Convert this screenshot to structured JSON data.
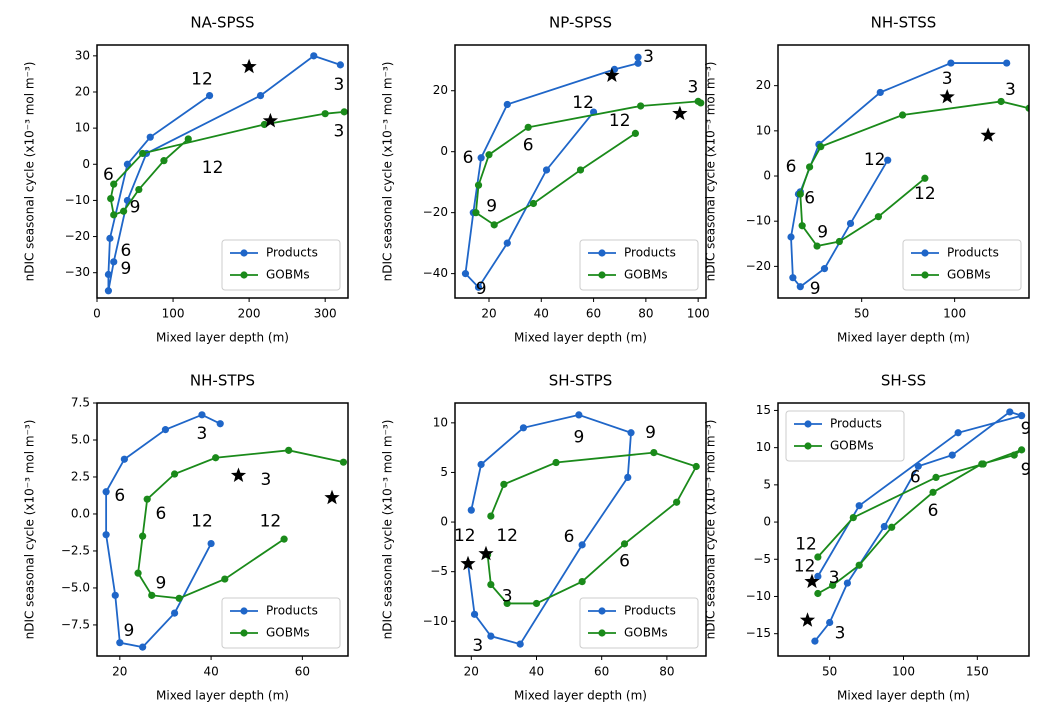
{
  "chart_data": [
    {
      "type": "line",
      "title": "NA-SPSS",
      "xlabel": "Mixed layer depth (m)",
      "ylabel": "nDIC seasonal cycle (x10⁻³ mol m⁻³)",
      "xlim": [
        0,
        330
      ],
      "xticks": [
        0,
        100,
        200,
        300
      ],
      "ylim": [
        -37,
        33
      ],
      "yticks": [
        {
          "value": -30,
          "label": "−30"
        },
        {
          "value": -20,
          "label": "−20"
        },
        {
          "value": -10,
          "label": "−10"
        },
        0,
        10,
        20,
        30
      ],
      "legend": "lower right",
      "series": [
        {
          "name": "Products",
          "color": "#1f66c8",
          "x": [
            148,
            70,
            40,
            17,
            15,
            15,
            22,
            40,
            65,
            215,
            285,
            320
          ],
          "y": [
            19,
            7.5,
            0,
            -20.5,
            -30.5,
            -35,
            -27,
            -10,
            3,
            19,
            30,
            27.5
          ]
        },
        {
          "name": "GOBMs",
          "color": "#1a8a1a",
          "x": [
            120,
            88,
            55,
            35,
            22,
            18,
            22,
            60,
            220,
            300,
            325
          ],
          "y": [
            7,
            1,
            -7,
            -13,
            -14,
            -9.5,
            -5.5,
            3,
            11,
            14,
            14.5
          ]
        }
      ],
      "stars": {
        "x": [
          200,
          228
        ],
        "y": [
          27,
          12
        ]
      },
      "annotations": [
        {
          "text": "12",
          "x": 138,
          "y": 23.5,
          "color": "#2b2bb5"
        },
        {
          "text": "3",
          "x": 318,
          "y": 22,
          "color": "#2b2bb5"
        },
        {
          "text": "6",
          "x": 38,
          "y": -24,
          "color": "#2b2bb5"
        },
        {
          "text": "9",
          "x": 38,
          "y": -29,
          "color": "#2b2bb5"
        },
        {
          "text": "6",
          "x": 15,
          "y": -3,
          "color": "#4cae4c"
        },
        {
          "text": "9",
          "x": 50,
          "y": -12,
          "color": "#4cae4c"
        },
        {
          "text": "12",
          "x": 152,
          "y": -1,
          "color": "#4cae4c"
        },
        {
          "text": "3",
          "x": 318,
          "y": 9,
          "color": "#4cae4c"
        }
      ]
    },
    {
      "type": "line",
      "title": "NP-SPSS",
      "xlabel": "Mixed layer depth (m)",
      "ylabel": "nDIC seasonal cycle (x10⁻³ mol m⁻³)",
      "xlim": [
        7,
        103
      ],
      "xticks": [
        20,
        40,
        60,
        80,
        100
      ],
      "ylim": [
        -48,
        35
      ],
      "yticks": [
        {
          "value": -40,
          "label": "−40"
        },
        {
          "value": -20,
          "label": "−20"
        },
        0,
        20
      ],
      "legend": "lower right",
      "series": [
        {
          "name": "Products",
          "color": "#1f66c8",
          "x": [
            77,
            77,
            68,
            27,
            17,
            14,
            11,
            16,
            27,
            42,
            60
          ],
          "y": [
            31,
            29,
            27,
            15.5,
            -2,
            -20,
            -40,
            -44.5,
            -30,
            -6,
            13
          ]
        },
        {
          "name": "GOBMs",
          "color": "#1a8a1a",
          "x": [
            101,
            100,
            78,
            35,
            20,
            16,
            15,
            22,
            37,
            55,
            76
          ],
          "y": [
            16,
            16.5,
            15,
            8,
            -1,
            -11,
            -20,
            -24,
            -17,
            -6,
            6
          ]
        }
      ],
      "stars": {
        "x": [
          67,
          93
        ],
        "y": [
          25,
          12.5
        ]
      },
      "annotations": [
        {
          "text": "3",
          "x": 81,
          "y": 31,
          "color": "#2b2bb5"
        },
        {
          "text": "6",
          "x": 12,
          "y": -2,
          "color": "#2b2bb5"
        },
        {
          "text": "9",
          "x": 17,
          "y": -45,
          "color": "#2b2bb5"
        },
        {
          "text": "12",
          "x": 56,
          "y": 16,
          "color": "#2b2bb5"
        },
        {
          "text": "3",
          "x": 98,
          "y": 21,
          "color": "#4cae4c"
        },
        {
          "text": "6",
          "x": 35,
          "y": 2,
          "color": "#4cae4c"
        },
        {
          "text": "9",
          "x": 21,
          "y": -18,
          "color": "#4cae4c"
        },
        {
          "text": "12",
          "x": 70,
          "y": 10,
          "color": "#4cae4c"
        }
      ]
    },
    {
      "type": "line",
      "title": "NH-STSS",
      "xlabel": "Mixed layer depth (m)",
      "ylabel": "nDIC seasonal cycle (x10⁻³ mol m⁻³)",
      "xlim": [
        5,
        140
      ],
      "xticks": [
        50,
        100
      ],
      "ylim": [
        -27,
        29
      ],
      "yticks": [
        {
          "value": -20,
          "label": "−20"
        },
        {
          "value": -10,
          "label": "−10"
        },
        0,
        10,
        20
      ],
      "legend": "lower right",
      "series": [
        {
          "name": "Products",
          "color": "#1f66c8",
          "x": [
            128,
            98,
            60,
            27,
            17,
            16,
            12,
            13,
            17,
            30,
            44,
            64
          ],
          "y": [
            25,
            25,
            18.5,
            7,
            -3.5,
            -4,
            -13.5,
            -22.5,
            -24.5,
            -20.5,
            -10.5,
            3.5
          ]
        },
        {
          "name": "GOBMs",
          "color": "#1a8a1a",
          "x": [
            140,
            125,
            72,
            28,
            22,
            17,
            18,
            26,
            38,
            59,
            84
          ],
          "y": [
            15,
            16.5,
            13.5,
            6.5,
            2,
            -4,
            -11,
            -15.5,
            -14.5,
            -9,
            -0.5
          ]
        }
      ],
      "stars": {
        "x": [
          96,
          118
        ],
        "y": [
          17.5,
          9
        ]
      },
      "annotations": [
        {
          "text": "3",
          "x": 96,
          "y": 21.5,
          "color": "#2b2bb5"
        },
        {
          "text": "6",
          "x": 22,
          "y": -5,
          "color": "#2b2bb5"
        },
        {
          "text": "9",
          "x": 25,
          "y": -25,
          "color": "#2b2bb5"
        },
        {
          "text": "12",
          "x": 57,
          "y": 3.5,
          "color": "#2b2bb5"
        },
        {
          "text": "3",
          "x": 130,
          "y": 19,
          "color": "#4cae4c"
        },
        {
          "text": "6",
          "x": 12,
          "y": 2,
          "color": "#4cae4c"
        },
        {
          "text": "9",
          "x": 29,
          "y": -12.5,
          "color": "#4cae4c"
        },
        {
          "text": "12",
          "x": 84,
          "y": -4,
          "color": "#4cae4c"
        }
      ]
    },
    {
      "type": "line",
      "title": "NH-STPS",
      "xlabel": "Mixed layer depth (m)",
      "ylabel": "nDIC seasonal cycle (x10⁻³ mol m⁻³)",
      "xlim": [
        15,
        70
      ],
      "xticks": [
        20,
        40,
        60
      ],
      "ylim": [
        -9.6,
        7.5
      ],
      "yticks": [
        {
          "value": -7.5,
          "label": "−7.5"
        },
        {
          "value": -5,
          "label": "−5.0"
        },
        {
          "value": -2.5,
          "label": "−2.5"
        },
        {
          "value": 0,
          "label": "0.0"
        },
        2.5,
        {
          "value": 5,
          "label": "5.0"
        },
        7.5
      ],
      "legend": "lower right",
      "series": [
        {
          "name": "Products",
          "color": "#1f66c8",
          "x": [
            40,
            32,
            25,
            20,
            19,
            17,
            17,
            21,
            30,
            38,
            42
          ],
          "y": [
            -2,
            -6.7,
            -9,
            -8.7,
            -5.5,
            -1.4,
            1.5,
            3.7,
            5.7,
            6.7,
            6.1
          ]
        },
        {
          "name": "GOBMs",
          "color": "#1a8a1a",
          "x": [
            56,
            43,
            33,
            27,
            24,
            25,
            26,
            32,
            41,
            57,
            69
          ],
          "y": [
            -1.7,
            -4.4,
            -5.7,
            -5.5,
            -4,
            -1.5,
            1,
            2.7,
            3.8,
            4.3,
            3.5
          ]
        }
      ],
      "stars": {
        "x": [
          46,
          66.5
        ],
        "y": [
          2.6,
          1.1
        ]
      },
      "annotations": [
        {
          "text": "3",
          "x": 38,
          "y": 5.4,
          "color": "#2b2bb5"
        },
        {
          "text": "6",
          "x": 20,
          "y": 1.2,
          "color": "#2b2bb5"
        },
        {
          "text": "9",
          "x": 22,
          "y": -7.9,
          "color": "#2b2bb5"
        },
        {
          "text": "12",
          "x": 38,
          "y": -0.5,
          "color": "#2b2bb5"
        },
        {
          "text": "3",
          "x": 52,
          "y": 2.3,
          "color": "#4cae4c"
        },
        {
          "text": "6",
          "x": 29,
          "y": 0,
          "color": "#4cae4c"
        },
        {
          "text": "9",
          "x": 29,
          "y": -4.7,
          "color": "#4cae4c"
        },
        {
          "text": "12",
          "x": 53,
          "y": -0.5,
          "color": "#4cae4c"
        }
      ]
    },
    {
      "type": "line",
      "title": "SH-STPS",
      "xlabel": "Mixed layer depth (m)",
      "ylabel": "nDIC seasonal cycle (x10⁻³ mol m⁻³)",
      "xlim": [
        15,
        92
      ],
      "xticks": [
        20,
        40,
        60,
        80
      ],
      "ylim": [
        -13.5,
        12
      ],
      "yticks": [
        {
          "value": -10,
          "label": "−10"
        },
        {
          "value": -5,
          "label": "−5"
        },
        0,
        5,
        10
      ],
      "legend": "lower right",
      "series": [
        {
          "name": "Products",
          "color": "#1f66c8",
          "x": [
            20,
            23,
            36,
            53,
            69,
            68,
            54,
            35,
            26,
            21,
            19
          ],
          "y": [
            1.2,
            5.8,
            9.5,
            10.8,
            9,
            4.5,
            -2.3,
            -12.3,
            -11.5,
            -9.3,
            -4.2
          ]
        },
        {
          "name": "GOBMs",
          "color": "#1a8a1a",
          "x": [
            26,
            30,
            46,
            76,
            89,
            83,
            67,
            54,
            40,
            31,
            26,
            25
          ],
          "y": [
            0.6,
            3.8,
            6,
            7,
            5.6,
            2,
            -2.2,
            -6,
            -8.2,
            -8.2,
            -6.3,
            -3.3
          ]
        }
      ],
      "stars": {
        "x": [
          19,
          24.5
        ],
        "y": [
          -4.2,
          -3.2
        ]
      },
      "annotations": [
        {
          "text": "12",
          "x": 18,
          "y": -1.4,
          "color": "#2b2bb5"
        },
        {
          "text": "3",
          "x": 22,
          "y": -12.5,
          "color": "#2b2bb5"
        },
        {
          "text": "6",
          "x": 50,
          "y": -1.5,
          "color": "#2b2bb5"
        },
        {
          "text": "9",
          "x": 53,
          "y": 8.5,
          "color": "#2b2bb5"
        },
        {
          "text": "12",
          "x": 31,
          "y": -1.4,
          "color": "#4cae4c"
        },
        {
          "text": "3",
          "x": 31,
          "y": -7.5,
          "color": "#4cae4c"
        },
        {
          "text": "6",
          "x": 67,
          "y": -4,
          "color": "#4cae4c"
        },
        {
          "text": "9",
          "x": 75,
          "y": 9,
          "color": "#4cae4c"
        }
      ]
    },
    {
      "type": "line",
      "title": "SH-SS",
      "xlabel": "Mixed layer depth (m)",
      "ylabel": "nDIC seasonal cycle (x10⁻³ mol m⁻³)",
      "xlim": [
        15,
        185
      ],
      "xticks": [
        50,
        100,
        150
      ],
      "ylim": [
        -18,
        16
      ],
      "yticks": [
        {
          "value": -15,
          "label": "−15"
        },
        {
          "value": -10,
          "label": "−10"
        },
        {
          "value": -5,
          "label": "−5"
        },
        0,
        5,
        10,
        15
      ],
      "legend": "upper left",
      "series": [
        {
          "name": "Products",
          "color": "#1f66c8",
          "x": [
            40,
            50,
            62,
            87,
            110,
            133,
            172,
            180,
            137,
            70,
            42
          ],
          "y": [
            -16,
            -13.5,
            -8.2,
            -0.6,
            7.5,
            9,
            14.8,
            14.3,
            12,
            2.2,
            -7.3
          ]
        },
        {
          "name": "GOBMs",
          "color": "#1a8a1a",
          "x": [
            42,
            52,
            70,
            92,
            120,
            153,
            175,
            180,
            154,
            122,
            66,
            42
          ],
          "y": [
            -9.6,
            -8.5,
            -5.8,
            -0.7,
            4,
            7.8,
            9,
            9.7,
            7.8,
            6,
            0.6,
            -4.7
          ]
        }
      ],
      "stars": {
        "x": [
          38,
          35
        ],
        "y": [
          -8,
          -13.2
        ]
      },
      "annotations": [
        {
          "text": "12",
          "x": 33,
          "y": -6,
          "color": "#2b2bb5"
        },
        {
          "text": "3",
          "x": 57,
          "y": -15,
          "color": "#2b2bb5"
        },
        {
          "text": "6",
          "x": 108,
          "y": 6,
          "color": "#2b2bb5"
        },
        {
          "text": "9",
          "x": 183,
          "y": 12.5,
          "color": "#2b2bb5"
        },
        {
          "text": "12",
          "x": 34,
          "y": -3,
          "color": "#4cae4c"
        },
        {
          "text": "3",
          "x": 53,
          "y": -7.5,
          "color": "#4cae4c"
        },
        {
          "text": "6",
          "x": 120,
          "y": 1.5,
          "color": "#4cae4c"
        },
        {
          "text": "9",
          "x": 183,
          "y": 7,
          "color": "#4cae4c"
        }
      ]
    }
  ]
}
